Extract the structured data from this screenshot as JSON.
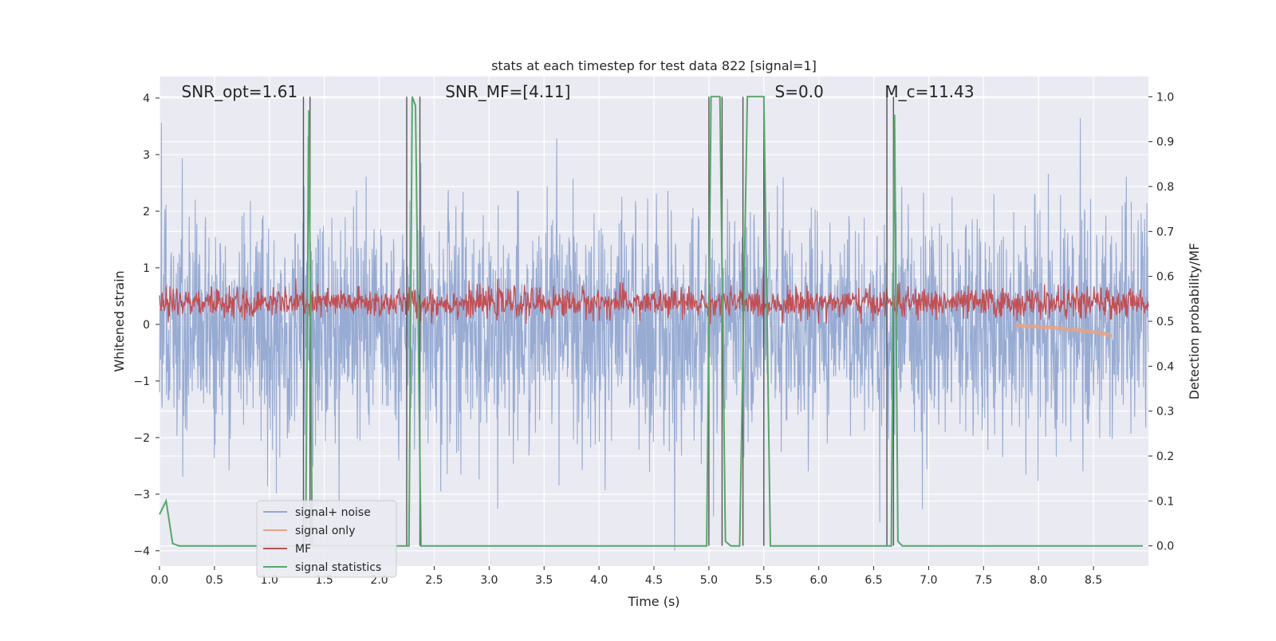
{
  "chart_data": {
    "type": "line",
    "title": "stats at each timestep for test data 822 [signal=1]",
    "xlabel": "Time (s)",
    "ylabel_left": "Whitened strain",
    "ylabel_right": "Detection probability/MF",
    "xlim": [
      0.0,
      9.0
    ],
    "ylim_left": [
      -4.27,
      4.38
    ],
    "ylim_right": [
      -0.045,
      1.045
    ],
    "x_ticks": [
      0.0,
      0.5,
      1.0,
      1.5,
      2.0,
      2.5,
      3.0,
      3.5,
      4.0,
      4.5,
      5.0,
      5.5,
      6.0,
      6.5,
      7.0,
      7.5,
      8.0,
      8.5
    ],
    "x_tick_labels": [
      "0.0",
      "0.5",
      "1.0",
      "1.5",
      "2.0",
      "2.5",
      "3.0",
      "3.5",
      "4.0",
      "4.5",
      "5.0",
      "5.5",
      "6.0",
      "6.5",
      "7.0",
      "7.5",
      "8.0",
      "8.5"
    ],
    "y_left_ticks": [
      -4,
      -3,
      -2,
      -1,
      0,
      1,
      2,
      3,
      4
    ],
    "y_left_tick_labels": [
      "−4",
      "−3",
      "−2",
      "−1",
      "0",
      "1",
      "2",
      "3",
      "4"
    ],
    "y_right_ticks": [
      0.0,
      0.1,
      0.2,
      0.3,
      0.4,
      0.5,
      0.6,
      0.7,
      0.8,
      0.9,
      1.0
    ],
    "y_right_tick_labels": [
      "0.0",
      "0.1",
      "0.2",
      "0.3",
      "0.4",
      "0.5",
      "0.6",
      "0.7",
      "0.8",
      "0.9",
      "1.0"
    ],
    "grid": true,
    "annotations": [
      {
        "text": "SNR_opt=1.61",
        "x": 0.2
      },
      {
        "text": "SNR_MF=[4.11]",
        "x": 2.6
      },
      {
        "text": "S=0.0",
        "x": 5.6
      },
      {
        "text": "M_c=11.43",
        "x": 6.6
      }
    ],
    "legend": {
      "position": "lower-left",
      "entries": [
        {
          "label": "signal+ noise",
          "color": "#92a8d1"
        },
        {
          "label": "signal only",
          "color": "#e8a283"
        },
        {
          "label": "MF",
          "color": "#c44e52"
        },
        {
          "label": "signal statistics",
          "color": "#55a868"
        }
      ]
    },
    "series": [
      {
        "name": "signal+ noise",
        "axis": "left",
        "color": "#92a8d1",
        "description_amplitude": {
          "mean": 0.0,
          "sigma": 1.0,
          "peak_max": 4.0,
          "peak_min": -4.0
        }
      },
      {
        "name": "signal only",
        "axis": "left",
        "color": "#e8a283",
        "x": [
          7.8,
          8.0,
          8.2,
          8.4,
          8.6,
          8.65
        ],
        "y": [
          -0.02,
          -0.04,
          -0.07,
          -0.11,
          -0.16,
          -0.2
        ]
      },
      {
        "name": "MF",
        "axis": "left",
        "color": "#c44e52",
        "description_amplitude": {
          "mean": 0.38,
          "spread": 0.22,
          "max": 1.0,
          "min": 0.0
        }
      },
      {
        "name": "signal statistics",
        "axis": "right",
        "color": "#55a868",
        "x": [
          0.0,
          0.06,
          0.12,
          0.18,
          1.3,
          1.33,
          1.36,
          1.39,
          1.42,
          2.27,
          2.3,
          2.33,
          2.38,
          2.42,
          4.98,
          5.02,
          5.1,
          5.15,
          5.2,
          5.28,
          5.35,
          5.38,
          5.5,
          5.56,
          6.62,
          6.66,
          6.69,
          6.72,
          6.76,
          8.95
        ],
        "y": [
          0.07,
          0.1,
          0.005,
          0.0,
          0.0,
          0.0,
          0.97,
          0.0,
          0.0,
          0.0,
          1.0,
          0.98,
          0.0,
          0.0,
          0.0,
          1.0,
          1.0,
          0.01,
          0.0,
          0.0,
          1.0,
          1.0,
          1.0,
          0.0,
          0.0,
          0.0,
          0.96,
          0.01,
          0.0,
          0.0
        ]
      }
    ],
    "vertical_markers": [
      1.31,
      1.37,
      2.25,
      2.37,
      5.0,
      5.12,
      5.31,
      5.5,
      6.62,
      6.68
    ]
  }
}
